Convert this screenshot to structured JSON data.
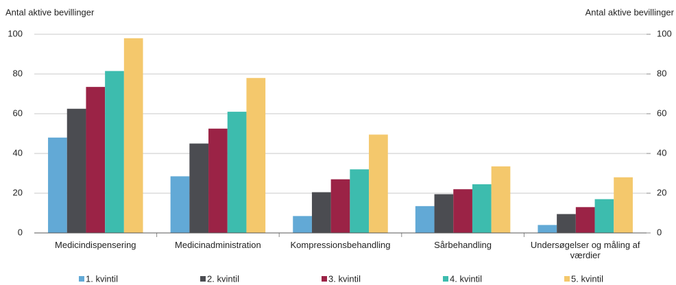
{
  "chart_data": {
    "type": "bar",
    "y_label": "Antal aktive bevillinger",
    "y2_label": "Antal aktive bevillinger",
    "categories": [
      "Medicindispensering",
      "Medicinadministration",
      "Kompressionsbehandling",
      "Sårbehandling",
      "Undersøgelser og måling af værdier"
    ],
    "series": [
      {
        "name": "1. kvintil",
        "color": "#62a9d6",
        "values": [
          48,
          28.5,
          8.5,
          13.5,
          4
        ]
      },
      {
        "name": "2. kvintil",
        "color": "#4b4c51",
        "values": [
          62.5,
          45,
          20.5,
          19.5,
          9.5
        ]
      },
      {
        "name": "3. kvintil",
        "color": "#9b2346",
        "values": [
          73.5,
          52.5,
          27,
          22,
          13
        ]
      },
      {
        "name": "4. kvintil",
        "color": "#3dbcae",
        "values": [
          81.5,
          61,
          32,
          24.5,
          17
        ]
      },
      {
        "name": "5. kvintil",
        "color": "#f4c86c",
        "values": [
          98,
          78,
          49.5,
          33.5,
          28
        ]
      }
    ],
    "ylim": [
      0,
      100
    ],
    "yticks": [
      0,
      20,
      40,
      60,
      80,
      100
    ],
    "y2lim": [
      0,
      100
    ],
    "y2ticks": [
      0,
      20,
      40,
      60,
      80,
      100
    ],
    "grid": true,
    "legend": "bottom"
  }
}
